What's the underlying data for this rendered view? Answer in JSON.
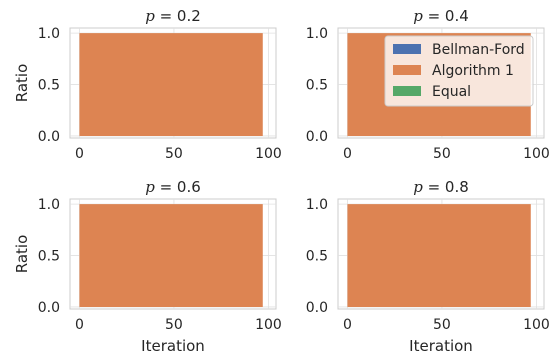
{
  "chart_data": [
    {
      "type": "area",
      "title_var": "p",
      "title_val": "0.2",
      "xlabel": "",
      "ylabel": "Ratio",
      "xlim": [
        -5,
        104
      ],
      "ylim": [
        -0.02,
        1.05
      ],
      "xticks": [
        "0",
        "50",
        "100"
      ],
      "yticks": [
        "0.0",
        "0.5",
        "1.0"
      ],
      "x": [
        0,
        97
      ],
      "series": [
        {
          "name": "Bellman-Ford",
          "values": [
            0,
            0
          ],
          "color": "#4c72b0"
        },
        {
          "name": "Algorithm 1",
          "values": [
            1,
            1
          ],
          "color": "#dd8452"
        },
        {
          "name": "Equal",
          "values": [
            0,
            0
          ],
          "color": "#55a868"
        }
      ],
      "grid": true
    },
    {
      "type": "area",
      "title_var": "p",
      "title_val": "0.4",
      "xlabel": "",
      "ylabel": "",
      "xlim": [
        -5,
        104
      ],
      "ylim": [
        -0.02,
        1.05
      ],
      "xticks": [
        "0",
        "50",
        "100"
      ],
      "yticks": [
        "0.0",
        "0.5",
        "1.0"
      ],
      "x": [
        0,
        97
      ],
      "series": [
        {
          "name": "Bellman-Ford",
          "values": [
            0,
            0
          ],
          "color": "#4c72b0"
        },
        {
          "name": "Algorithm 1",
          "values": [
            1,
            1
          ],
          "color": "#dd8452"
        },
        {
          "name": "Equal",
          "values": [
            0,
            0
          ],
          "color": "#55a868"
        }
      ],
      "legend": "top-right",
      "grid": true
    },
    {
      "type": "area",
      "title_var": "p",
      "title_val": "0.6",
      "xlabel": "Iteration",
      "ylabel": "Ratio",
      "xlim": [
        -5,
        104
      ],
      "ylim": [
        -0.02,
        1.05
      ],
      "xticks": [
        "0",
        "50",
        "100"
      ],
      "yticks": [
        "0.0",
        "0.5",
        "1.0"
      ],
      "x": [
        0,
        97
      ],
      "series": [
        {
          "name": "Bellman-Ford",
          "values": [
            0,
            0
          ],
          "color": "#4c72b0"
        },
        {
          "name": "Algorithm 1",
          "values": [
            1,
            1
          ],
          "color": "#dd8452"
        },
        {
          "name": "Equal",
          "values": [
            0,
            0
          ],
          "color": "#55a868"
        }
      ],
      "grid": true
    },
    {
      "type": "area",
      "title_var": "p",
      "title_val": "0.8",
      "xlabel": "Iteration",
      "ylabel": "",
      "xlim": [
        -5,
        104
      ],
      "ylim": [
        -0.02,
        1.05
      ],
      "xticks": [
        "0",
        "50",
        "100"
      ],
      "yticks": [
        "0.0",
        "0.5",
        "1.0"
      ],
      "x": [
        0,
        97
      ],
      "series": [
        {
          "name": "Bellman-Ford",
          "values": [
            0,
            0
          ],
          "color": "#4c72b0"
        },
        {
          "name": "Algorithm 1",
          "values": [
            1,
            1
          ],
          "color": "#dd8452"
        },
        {
          "name": "Equal",
          "values": [
            0,
            0
          ],
          "color": "#55a868"
        }
      ],
      "grid": true
    }
  ]
}
